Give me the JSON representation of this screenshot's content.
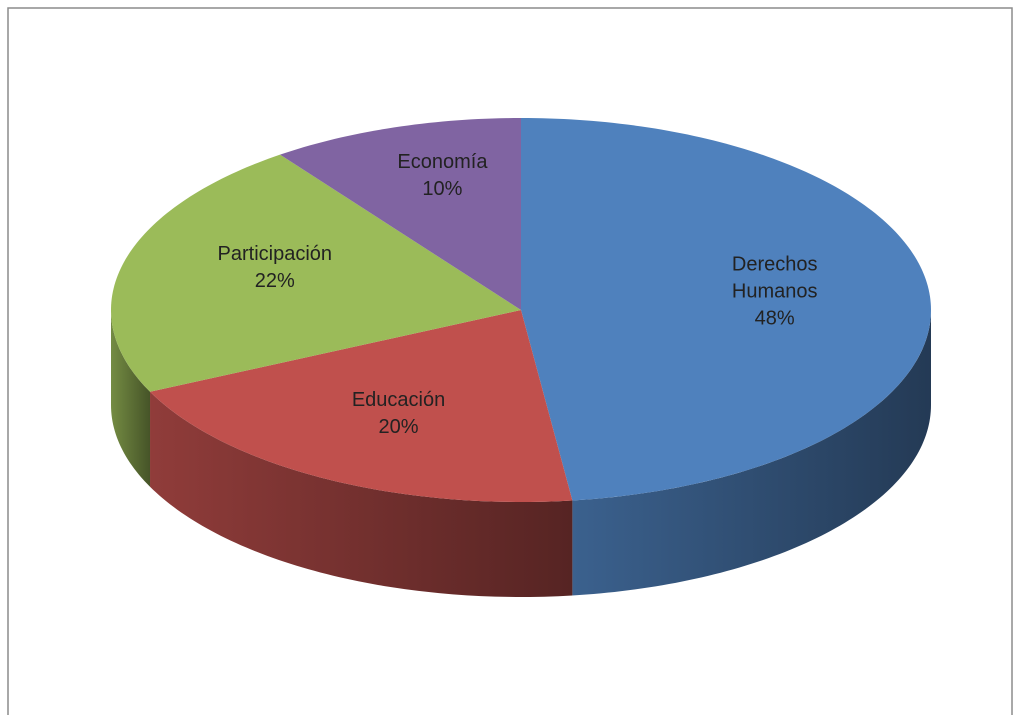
{
  "chart_data": {
    "type": "pie3d",
    "categories": [
      "Derechos Humanos",
      "Educación",
      "Participación",
      "Economía"
    ],
    "values": [
      48,
      20,
      22,
      10
    ],
    "value_labels": [
      "48%",
      "20%",
      "22%",
      "10%"
    ],
    "colors": [
      "#4f81bd",
      "#c0504d",
      "#9bbb59",
      "#8064a2"
    ]
  }
}
